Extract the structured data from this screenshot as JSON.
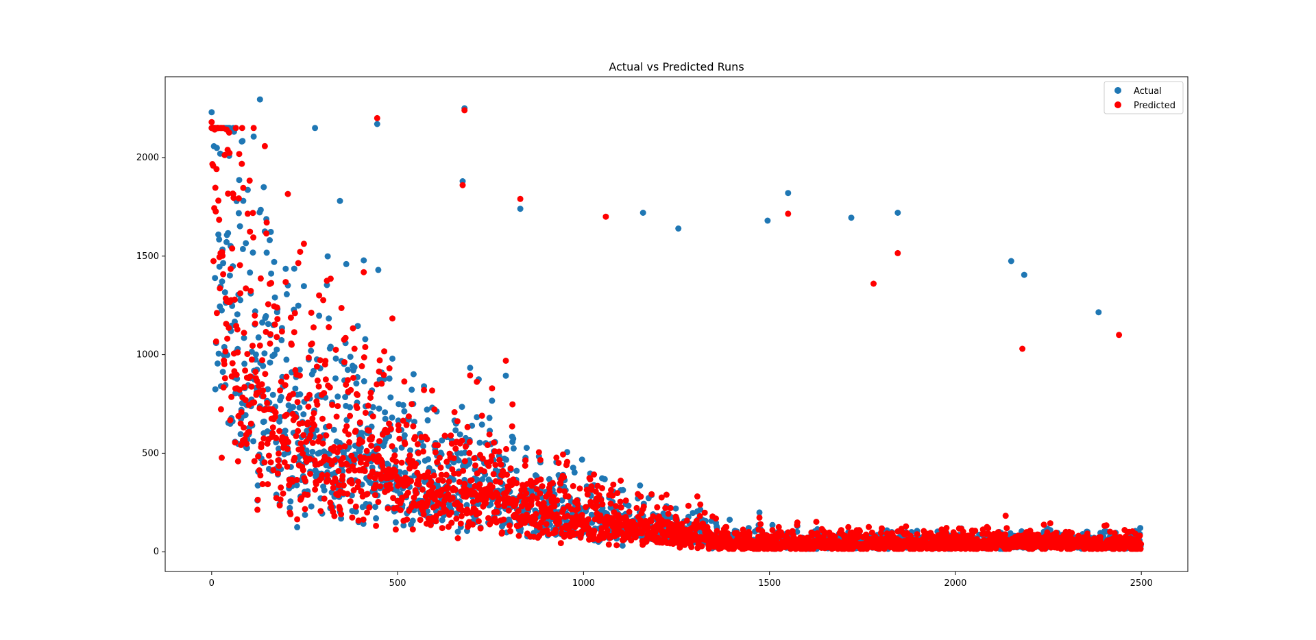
{
  "chart_data": {
    "type": "scatter",
    "title": "Actual vs Predicted Runs",
    "xlabel": "",
    "ylabel": "",
    "xlim": [
      -125,
      2625
    ],
    "ylim": [
      -100,
      2410
    ],
    "x_ticks": [
      0,
      500,
      1000,
      1500,
      2000,
      2500
    ],
    "y_ticks": [
      0,
      500,
      1000,
      1500,
      2000
    ],
    "grid": false,
    "legend_position": "top-right",
    "point_count_per_series": 2500,
    "series": [
      {
        "name": "Actual",
        "color": "#1f77b4",
        "trend": "decreasing",
        "outliers": [
          [
            0,
            2230
          ],
          [
            130,
            2295
          ],
          [
            140,
            1850
          ],
          [
            345,
            1780
          ],
          [
            445,
            2170
          ],
          [
            680,
            2250
          ],
          [
            675,
            1880
          ],
          [
            830,
            1740
          ],
          [
            1160,
            1720
          ],
          [
            1255,
            1640
          ],
          [
            1495,
            1680
          ],
          [
            1550,
            1820
          ],
          [
            1720,
            1695
          ],
          [
            1845,
            1720
          ],
          [
            2150,
            1475
          ],
          [
            2185,
            1405
          ],
          [
            2385,
            1215
          ]
        ]
      },
      {
        "name": "Predicted",
        "color": "#ff0000",
        "trend": "decreasing",
        "outliers": [
          [
            0,
            2180
          ],
          [
            445,
            2200
          ],
          [
            680,
            2240
          ],
          [
            675,
            1860
          ],
          [
            830,
            1790
          ],
          [
            1060,
            1700
          ],
          [
            1550,
            1715
          ],
          [
            1845,
            1515
          ],
          [
            1780,
            1360
          ],
          [
            2180,
            1030
          ],
          [
            2440,
            1100
          ]
        ]
      }
    ]
  }
}
